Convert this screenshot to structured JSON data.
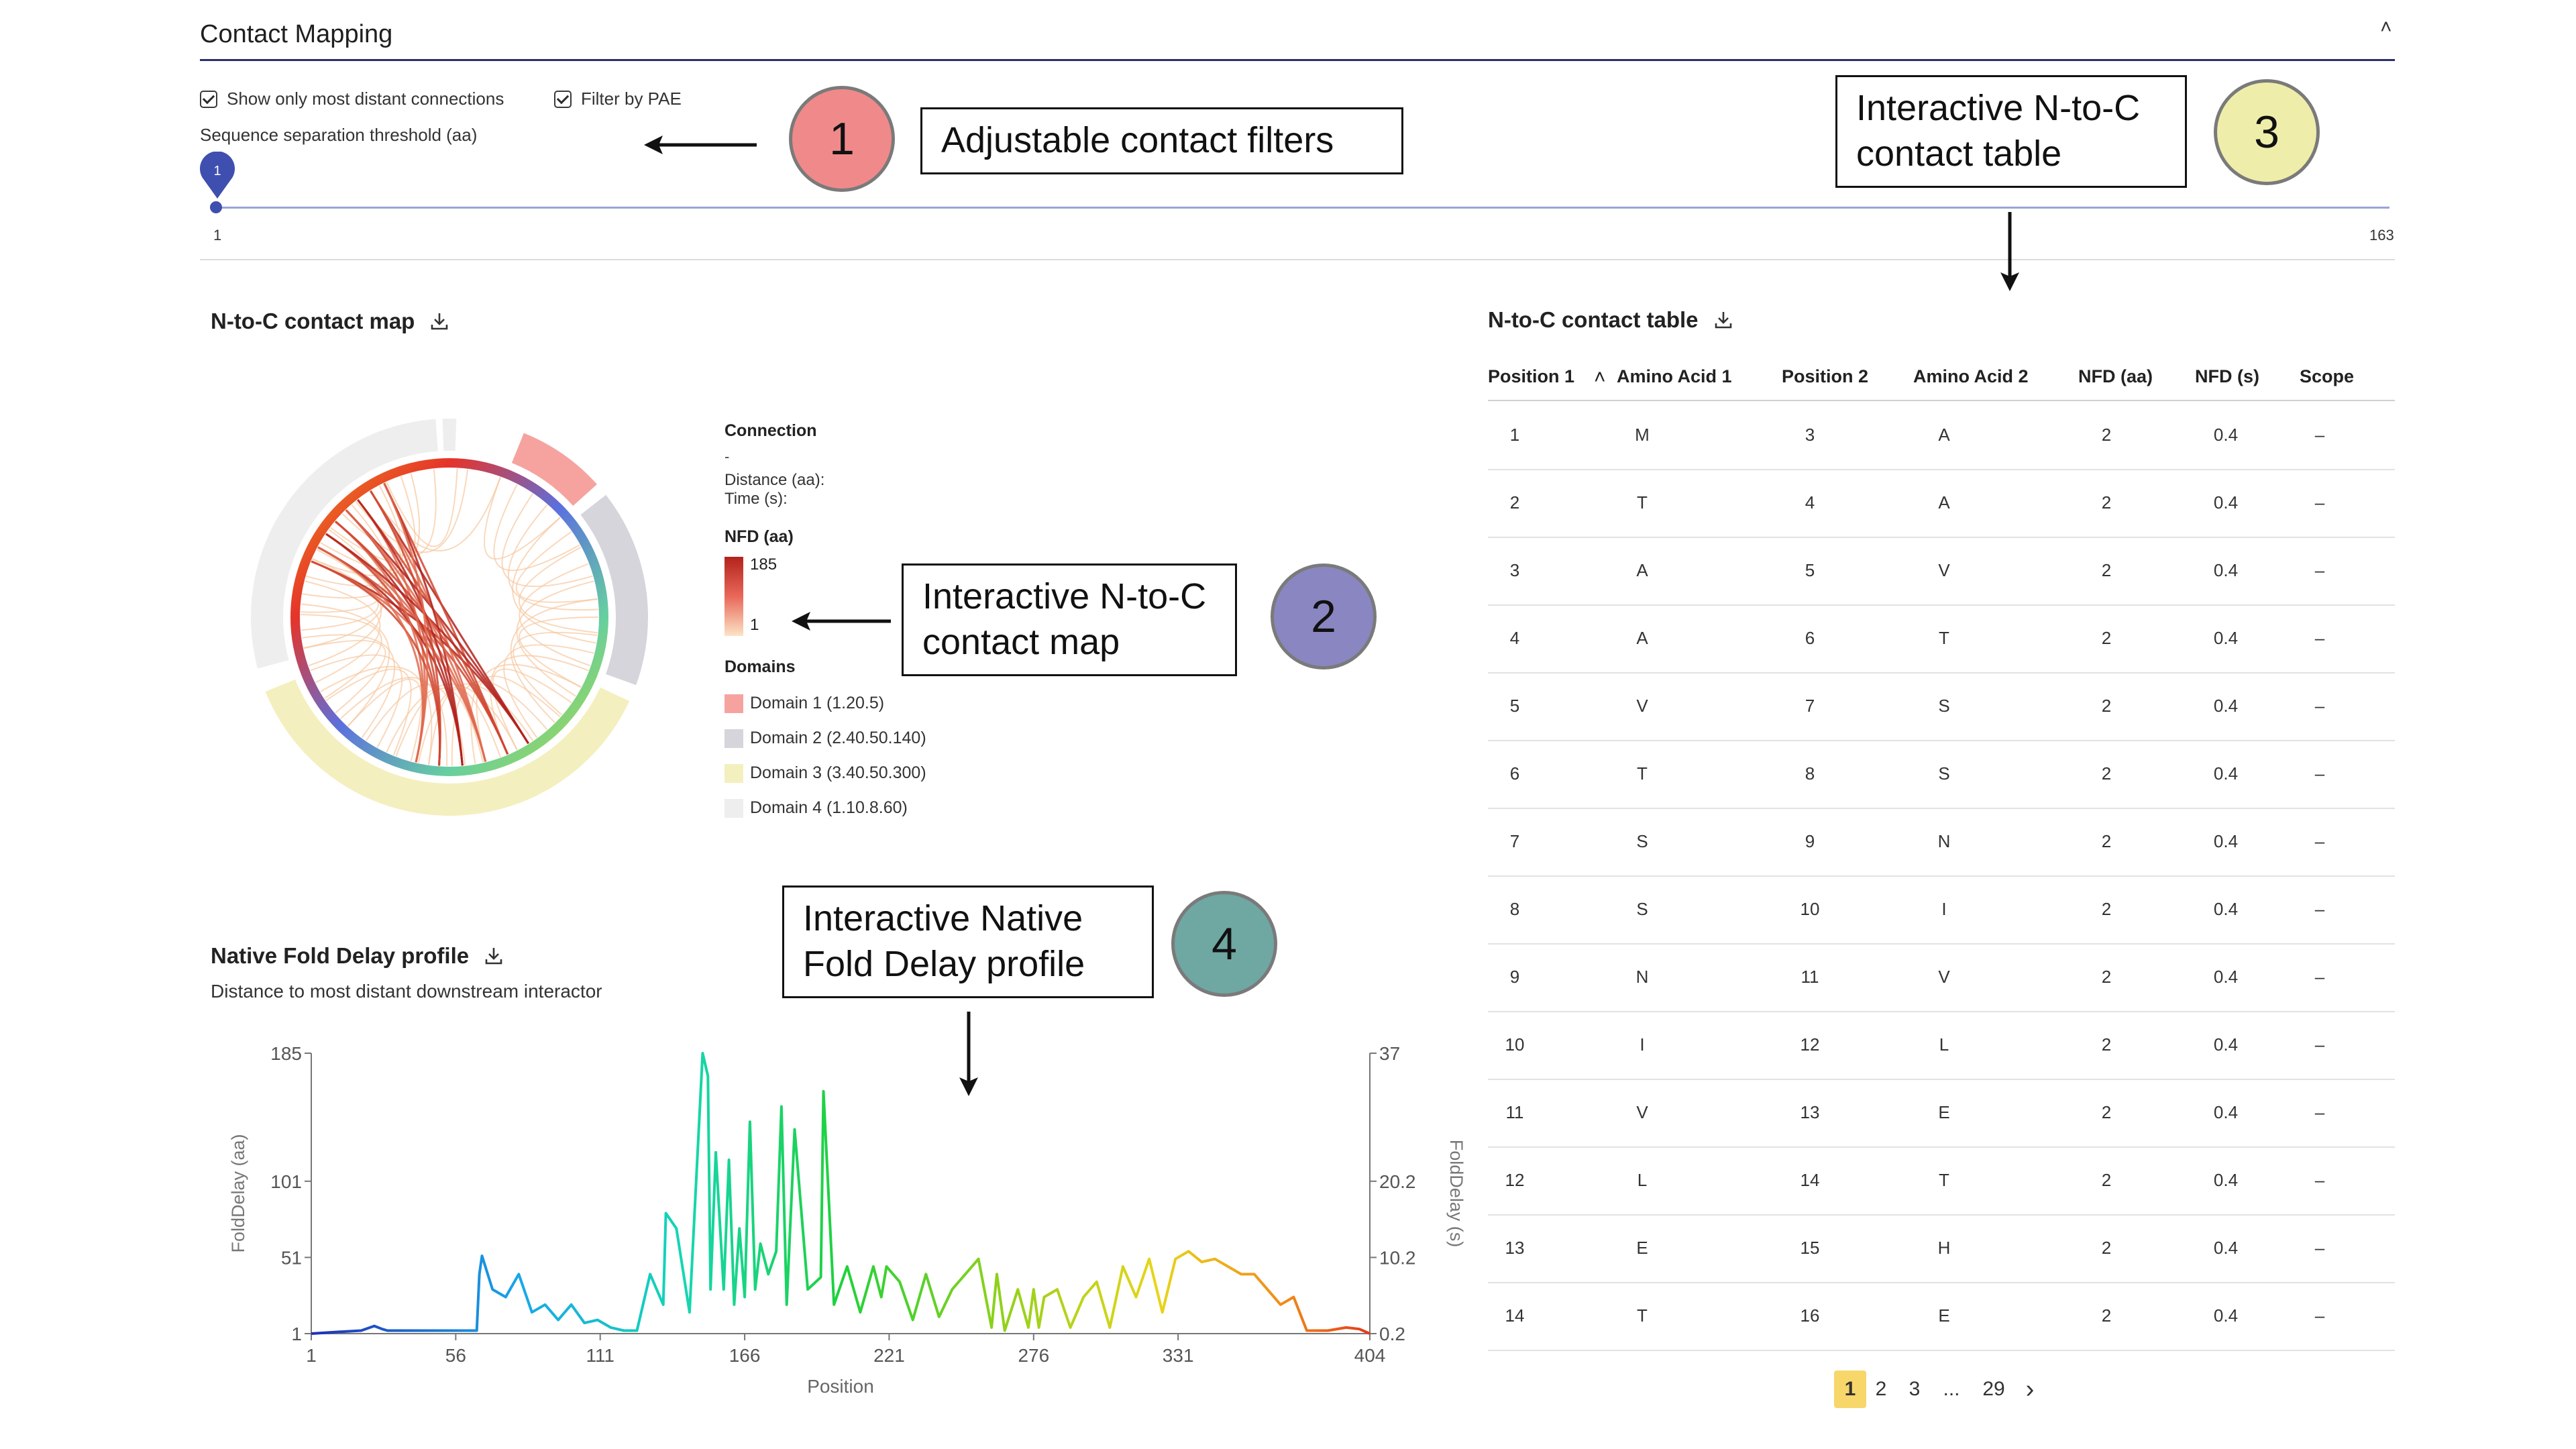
{
  "header": {
    "title": "Contact Mapping",
    "collapse_glyph": "˄"
  },
  "filters": {
    "checkbox1_label": "Show only most distant connections",
    "checkbox2_label": "Filter by PAE",
    "threshold_label": "Sequence separation threshold (aa)",
    "slider_value": "1",
    "slider_min": "1",
    "slider_max": "163"
  },
  "callouts": {
    "c1_text": "Adjustable contact filters",
    "c1_num": "1",
    "c2_line1": "Interactive N-to-C",
    "c2_line2": "contact map",
    "c2_num": "2",
    "c3_line1": "Interactive N-to-C",
    "c3_line2": "contact table",
    "c3_num": "3",
    "c4_line1": "Interactive Native",
    "c4_line2": "Fold Delay profile",
    "c4_num": "4"
  },
  "contact_map": {
    "title": "N-to-C contact map",
    "legend": {
      "connection_title": "Connection",
      "connection_dash": "-",
      "distance_label": "Distance (aa):",
      "time_label": "Time (s):",
      "nfd_title": "NFD (aa)",
      "nfd_max": "185",
      "nfd_min": "1",
      "domains_title": "Domains",
      "domains": [
        {
          "label": "Domain 1 (1.20.5)",
          "color": "#f6a3a0"
        },
        {
          "label": "Domain 2 (2.40.50.140)",
          "color": "#d5d5db"
        },
        {
          "label": "Domain 3 (3.40.50.300)",
          "color": "#f4efbe"
        },
        {
          "label": "Domain 4 (1.10.8.60)",
          "color": "#eeeeee"
        }
      ]
    }
  },
  "table": {
    "title": "N-to-C contact table",
    "headers": [
      "Position 1",
      "Amino Acid 1",
      "Position 2",
      "Amino Acid 2",
      "NFD (aa)",
      "NFD (s)",
      "Scope"
    ],
    "sort_glyph": "˄",
    "rows": [
      [
        "1",
        "M",
        "3",
        "A",
        "2",
        "0.4",
        "–"
      ],
      [
        "2",
        "T",
        "4",
        "A",
        "2",
        "0.4",
        "–"
      ],
      [
        "3",
        "A",
        "5",
        "V",
        "2",
        "0.4",
        "–"
      ],
      [
        "4",
        "A",
        "6",
        "T",
        "2",
        "0.4",
        "–"
      ],
      [
        "5",
        "V",
        "7",
        "S",
        "2",
        "0.4",
        "–"
      ],
      [
        "6",
        "T",
        "8",
        "S",
        "2",
        "0.4",
        "–"
      ],
      [
        "7",
        "S",
        "9",
        "N",
        "2",
        "0.4",
        "–"
      ],
      [
        "8",
        "S",
        "10",
        "I",
        "2",
        "0.4",
        "–"
      ],
      [
        "9",
        "N",
        "11",
        "V",
        "2",
        "0.4",
        "–"
      ],
      [
        "10",
        "I",
        "12",
        "L",
        "2",
        "0.4",
        "–"
      ],
      [
        "11",
        "V",
        "13",
        "E",
        "2",
        "0.4",
        "–"
      ],
      [
        "12",
        "L",
        "14",
        "T",
        "2",
        "0.4",
        "–"
      ],
      [
        "13",
        "E",
        "15",
        "H",
        "2",
        "0.4",
        "–"
      ],
      [
        "14",
        "T",
        "16",
        "E",
        "2",
        "0.4",
        "–"
      ]
    ],
    "pagination": {
      "current": "1",
      "p2": "2",
      "p3": "3",
      "ellipsis": "...",
      "last": "29",
      "next": "›"
    }
  },
  "nfd_profile": {
    "title": "Native Fold Delay profile",
    "subtitle": "Distance to most distant downstream interactor"
  },
  "chart_data": {
    "type": "line",
    "xlabel": "Position",
    "ylabel": "FoldDelay (aa)",
    "y2label": "FoldDelay (s)",
    "xlim": [
      1,
      404
    ],
    "ylim": [
      1,
      185
    ],
    "x_ticks": [
      "1",
      "56",
      "111",
      "166",
      "221",
      "276",
      "331",
      "404"
    ],
    "y_ticks": [
      "1",
      "51",
      "101",
      "185"
    ],
    "y2_ticks": [
      "0.2",
      "10.2",
      "20.2",
      "37"
    ],
    "x": [
      1,
      10,
      20,
      25,
      28,
      30,
      40,
      50,
      60,
      64,
      65,
      66,
      70,
      75,
      80,
      85,
      90,
      95,
      100,
      105,
      110,
      115,
      120,
      125,
      130,
      135,
      136,
      140,
      145,
      150,
      152,
      153,
      155,
      158,
      160,
      162,
      164,
      166,
      168,
      170,
      172,
      175,
      178,
      180,
      182,
      185,
      190,
      195,
      196,
      200,
      205,
      210,
      215,
      218,
      220,
      225,
      230,
      235,
      240,
      245,
      250,
      255,
      260,
      262,
      265,
      270,
      274,
      276,
      278,
      280,
      285,
      290,
      295,
      300,
      305,
      310,
      315,
      320,
      325,
      330,
      335,
      340,
      345,
      350,
      355,
      360,
      365,
      370,
      375,
      380,
      385,
      388,
      395,
      400,
      404
    ],
    "values": [
      1,
      2,
      3,
      6,
      4,
      3,
      3,
      3,
      3,
      3,
      40,
      52,
      30,
      25,
      40,
      15,
      20,
      10,
      20,
      8,
      10,
      5,
      3,
      3,
      40,
      20,
      80,
      70,
      15,
      185,
      170,
      30,
      120,
      30,
      115,
      20,
      70,
      25,
      140,
      30,
      60,
      40,
      55,
      150,
      20,
      135,
      30,
      38,
      160,
      20,
      45,
      15,
      45,
      25,
      45,
      35,
      10,
      40,
      12,
      30,
      40,
      50,
      5,
      40,
      3,
      30,
      5,
      30,
      5,
      25,
      30,
      5,
      25,
      35,
      5,
      45,
      25,
      50,
      15,
      50,
      55,
      48,
      50,
      45,
      40,
      40,
      30,
      20,
      25,
      3,
      3,
      3,
      5,
      4,
      1
    ]
  }
}
